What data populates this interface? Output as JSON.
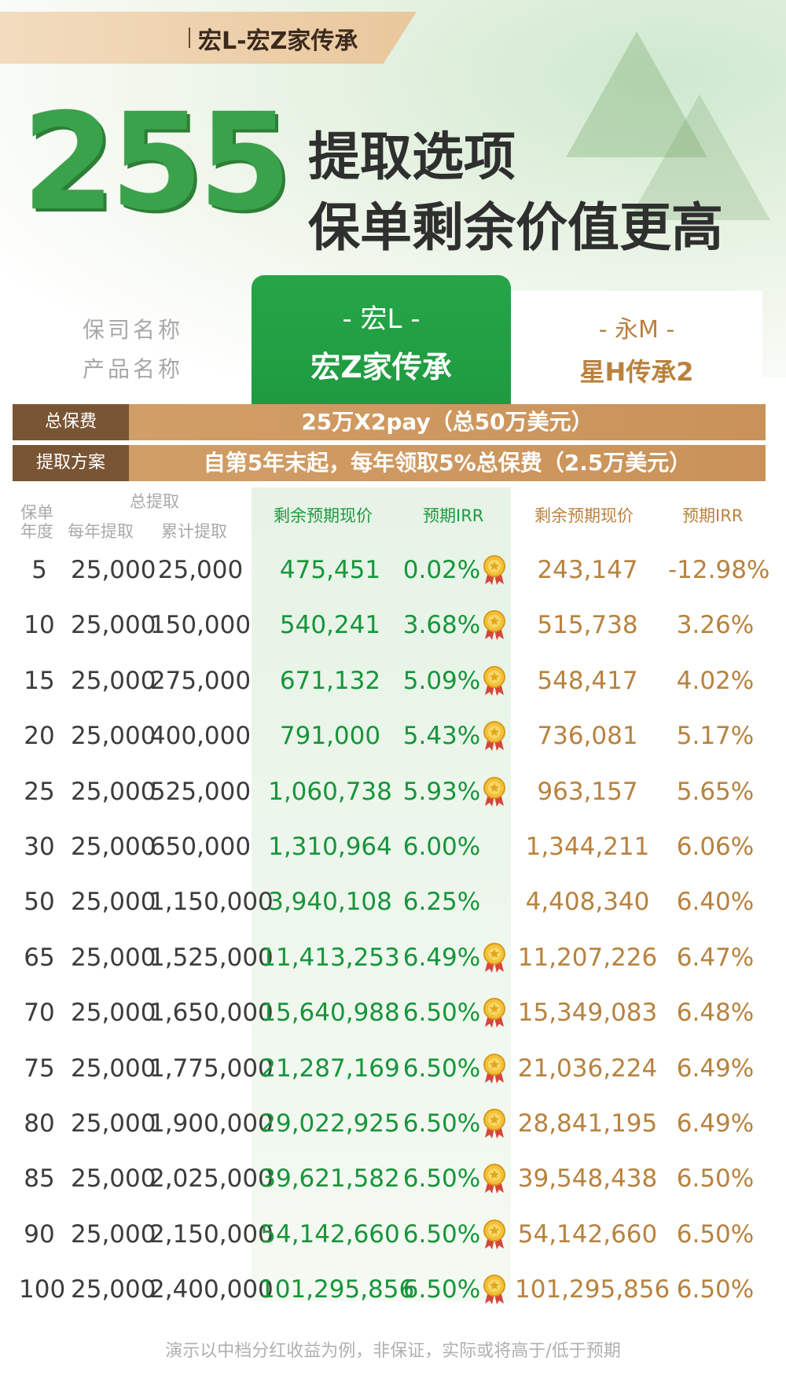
{
  "tag": {
    "text": "宏L-宏Z家传承"
  },
  "headline": {
    "number": "255",
    "line1": "提取选项",
    "line2": "保单剩余价值更高"
  },
  "compare": {
    "left_labels": [
      "保司名称",
      "产品名称"
    ],
    "a": {
      "company": "- 宏L -",
      "product": "宏Z家传承"
    },
    "b": {
      "company": "- 永M -",
      "product": "星H传承2"
    }
  },
  "premium": {
    "label": "总保费",
    "value": "25万X2pay（总50万美元）"
  },
  "withdraw": {
    "label": "提取方案",
    "value": "自第5年末起，每年领取5%总保费（2.5万美元）"
  },
  "table": {
    "headers": {
      "year_top": "保单",
      "year_bot": "年度",
      "total_withdraw": "总提取",
      "annual": "每年提取",
      "cumulative": "累计提取",
      "a_value": "剩余预期现价",
      "a_irr": "预期IRR",
      "b_value": "剩余预期现价",
      "b_irr": "预期IRR"
    },
    "rows": [
      {
        "year": "5",
        "annual": "25,000",
        "cum": "25,000",
        "a_val": "475,451",
        "a_irr": "0.02%",
        "medal": true,
        "b_val": "243,147",
        "b_irr": "-12.98%"
      },
      {
        "year": "10",
        "annual": "25,000",
        "cum": "150,000",
        "a_val": "540,241",
        "a_irr": "3.68%",
        "medal": true,
        "b_val": "515,738",
        "b_irr": "3.26%"
      },
      {
        "year": "15",
        "annual": "25,000",
        "cum": "275,000",
        "a_val": "671,132",
        "a_irr": "5.09%",
        "medal": true,
        "b_val": "548,417",
        "b_irr": "4.02%"
      },
      {
        "year": "20",
        "annual": "25,000",
        "cum": "400,000",
        "a_val": "791,000",
        "a_irr": "5.43%",
        "medal": true,
        "b_val": "736,081",
        "b_irr": "5.17%"
      },
      {
        "year": "25",
        "annual": "25,000",
        "cum": "525,000",
        "a_val": "1,060,738",
        "a_irr": "5.93%",
        "medal": true,
        "b_val": "963,157",
        "b_irr": "5.65%"
      },
      {
        "year": "30",
        "annual": "25,000",
        "cum": "650,000",
        "a_val": "1,310,964",
        "a_irr": "6.00%",
        "medal": false,
        "b_val": "1,344,211",
        "b_irr": "6.06%"
      },
      {
        "year": "50",
        "annual": "25,000",
        "cum": "1,150,000",
        "a_val": "3,940,108",
        "a_irr": "6.25%",
        "medal": false,
        "b_val": "4,408,340",
        "b_irr": "6.40%"
      },
      {
        "year": "65",
        "annual": "25,000",
        "cum": "1,525,000",
        "a_val": "11,413,253",
        "a_irr": "6.49%",
        "medal": true,
        "b_val": "11,207,226",
        "b_irr": "6.47%"
      },
      {
        "year": "70",
        "annual": "25,000",
        "cum": "1,650,000",
        "a_val": "15,640,988",
        "a_irr": "6.50%",
        "medal": true,
        "b_val": "15,349,083",
        "b_irr": "6.48%"
      },
      {
        "year": "75",
        "annual": "25,000",
        "cum": "1,775,000",
        "a_val": "21,287,169",
        "a_irr": "6.50%",
        "medal": true,
        "b_val": "21,036,224",
        "b_irr": "6.49%"
      },
      {
        "year": "80",
        "annual": "25,000",
        "cum": "1,900,000",
        "a_val": "29,022,925",
        "a_irr": "6.50%",
        "medal": true,
        "b_val": "28,841,195",
        "b_irr": "6.49%"
      },
      {
        "year": "85",
        "annual": "25,000",
        "cum": "2,025,000",
        "a_val": "39,621,582",
        "a_irr": "6.50%",
        "medal": true,
        "b_val": "39,548,438",
        "b_irr": "6.50%"
      },
      {
        "year": "90",
        "annual": "25,000",
        "cum": "2,150,000",
        "a_val": "54,142,660",
        "a_irr": "6.50%",
        "medal": true,
        "b_val": "54,142,660",
        "b_irr": "6.50%"
      },
      {
        "year": "100",
        "annual": "25,000",
        "cum": "2,400,000",
        "a_val": "101,295,856",
        "a_irr": "6.50%",
        "medal": true,
        "b_val": "101,295,856",
        "b_irr": "6.50%"
      }
    ]
  },
  "footnote": "演示以中档分红收益为例，非保证，实际或将高于/低于预期",
  "colors": {
    "green": "#1f9a40",
    "brown": "#b8823e",
    "band": "#c99258",
    "band_label": "#7a5534"
  }
}
